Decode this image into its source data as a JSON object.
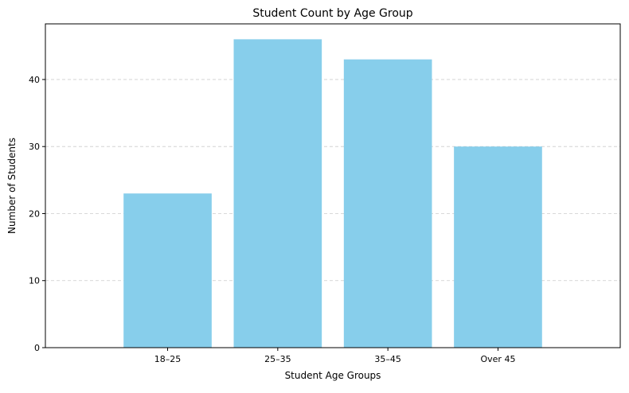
{
  "chart_data": {
    "type": "bar",
    "title": "Student Count by Age Group",
    "xlabel": "Student Age Groups",
    "ylabel": "Number of Students",
    "categories": [
      "18–25",
      "25–35",
      "35–45",
      "Over 45"
    ],
    "values": [
      23,
      46,
      43,
      30
    ],
    "ylim": [
      0,
      48.3
    ],
    "yticks": [
      0,
      10,
      20,
      30,
      40
    ],
    "grid": "y-dashed",
    "colors": {
      "bar": "#87CEEB",
      "grid": "#cccccc",
      "axis": "#000000"
    }
  }
}
